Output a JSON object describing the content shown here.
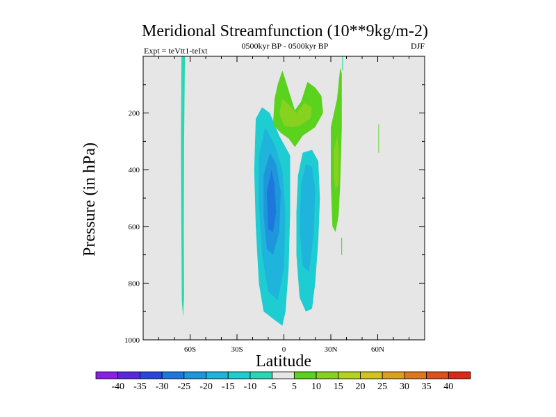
{
  "chart_data": {
    "type": "contour",
    "title": "Meridional Streamfunction (10**9kg/m-2)",
    "left_subtitle": "Expt = teVtt1-teIxt",
    "center_subtitle": "0500kyr BP - 0500kyr BP",
    "right_subtitle": "DJF",
    "xlabel": "Latitude",
    "ylabel": "Pressure (in hPa)",
    "xlim": [
      -90,
      90
    ],
    "ylim": [
      1000,
      0
    ],
    "x_ticks": [
      {
        "value": -60,
        "label": "60S"
      },
      {
        "value": -30,
        "label": "30S"
      },
      {
        "value": 0,
        "label": "0"
      },
      {
        "value": 30,
        "label": "30N"
      },
      {
        "value": 60,
        "label": "60N"
      }
    ],
    "y_ticks": [
      {
        "value": 200,
        "label": "200"
      },
      {
        "value": 400,
        "label": "400"
      },
      {
        "value": 600,
        "label": "600"
      },
      {
        "value": 800,
        "label": "800"
      },
      {
        "value": 1000,
        "label": "1000"
      }
    ],
    "background_color": "#e6e6e6",
    "colorbar": {
      "labels": [
        "-40",
        "-35",
        "-30",
        "-25",
        "-20",
        "-15",
        "-10",
        "-5",
        "5",
        "10",
        "15",
        "20",
        "25",
        "30",
        "35",
        "40"
      ],
      "colors": [
        "#8c1ee6",
        "#5a28dc",
        "#2846dc",
        "#1e78dc",
        "#1e96dc",
        "#1eb4dc",
        "#1ecdd2",
        "#28d7b4",
        "#e6e6e6",
        "#5ad21e",
        "#87d21e",
        "#b4d21e",
        "#d2c31e",
        "#dca01e",
        "#dc781e",
        "#dc501e",
        "#dc2814"
      ]
    },
    "contour_regions": [
      {
        "name": "band-60s",
        "value": -7,
        "color": "#28d7b4",
        "points": [
          [
            -65.5,
            0
          ],
          [
            -63.3,
            0
          ],
          [
            -63.8,
            300
          ],
          [
            -64,
            600
          ],
          [
            -63.8,
            850
          ],
          [
            -64.5,
            920
          ],
          [
            -65.3,
            860
          ],
          [
            -65.6,
            600
          ],
          [
            -65.8,
            300
          ]
        ]
      },
      {
        "name": "cell-south-outer",
        "value": -12,
        "color": "#1ecdd2",
        "points": [
          [
            -18,
            220
          ],
          [
            -14,
            180
          ],
          [
            -9,
            200
          ],
          [
            -3,
            280
          ],
          [
            4,
            350
          ],
          [
            4,
            550
          ],
          [
            3,
            750
          ],
          [
            1,
            900
          ],
          [
            -1,
            950
          ],
          [
            -6,
            930
          ],
          [
            -13,
            900
          ],
          [
            -16,
            800
          ],
          [
            -18,
            600
          ],
          [
            -19,
            400
          ]
        ]
      },
      {
        "name": "cell-south-mid",
        "value": -17,
        "color": "#1eb4dc",
        "points": [
          [
            -16,
            350
          ],
          [
            -12,
            250
          ],
          [
            -6,
            310
          ],
          [
            -1,
            400
          ],
          [
            1,
            560
          ],
          [
            0,
            750
          ],
          [
            -4,
            860
          ],
          [
            -10,
            830
          ],
          [
            -14,
            700
          ],
          [
            -16,
            520
          ]
        ]
      },
      {
        "name": "cell-south-inner",
        "value": -22,
        "color": "#1e96dc",
        "points": [
          [
            -13,
            420
          ],
          [
            -9,
            340
          ],
          [
            -5,
            380
          ],
          [
            -2,
            480
          ],
          [
            -3,
            620
          ],
          [
            -7,
            700
          ],
          [
            -11,
            680
          ],
          [
            -13,
            560
          ]
        ]
      },
      {
        "name": "cell-south-core",
        "value": -27,
        "color": "#1e78dc",
        "points": [
          [
            -11,
            480
          ],
          [
            -8,
            400
          ],
          [
            -6,
            450
          ],
          [
            -5,
            550
          ],
          [
            -7,
            620
          ],
          [
            -10,
            610
          ]
        ]
      },
      {
        "name": "cell-tropics-outer",
        "value": -12,
        "color": "#1ecdd2",
        "points": [
          [
            9,
            420
          ],
          [
            12,
            340
          ],
          [
            18,
            330
          ],
          [
            22,
            370
          ],
          [
            23,
            500
          ],
          [
            22,
            650
          ],
          [
            20,
            800
          ],
          [
            18,
            890
          ],
          [
            14,
            900
          ],
          [
            10,
            850
          ],
          [
            8,
            700
          ],
          [
            8,
            550
          ]
        ]
      },
      {
        "name": "cell-tropics-mid",
        "value": -17,
        "color": "#1eb4dc",
        "points": [
          [
            11,
            450
          ],
          [
            14,
            380
          ],
          [
            18,
            390
          ],
          [
            20,
            470
          ],
          [
            19,
            630
          ],
          [
            16,
            760
          ],
          [
            12,
            740
          ],
          [
            10,
            600
          ]
        ]
      },
      {
        "name": "upper-positive",
        "value": 7,
        "color": "#5ad21e",
        "points": [
          [
            -6,
            150
          ],
          [
            -4,
            100
          ],
          [
            -1,
            50
          ],
          [
            3,
            120
          ],
          [
            7,
            190
          ],
          [
            11,
            160
          ],
          [
            15,
            90
          ],
          [
            20,
            110
          ],
          [
            24,
            140
          ],
          [
            25,
            200
          ],
          [
            20,
            250
          ],
          [
            12,
            280
          ],
          [
            7,
            320
          ],
          [
            3,
            290
          ],
          [
            -2,
            270
          ],
          [
            -7,
            240
          ]
        ]
      },
      {
        "name": "upper-positive-inner",
        "value": 12,
        "color": "#87d21e",
        "points": [
          [
            -3,
            200
          ],
          [
            -1,
            150
          ],
          [
            3,
            170
          ],
          [
            8,
            200
          ],
          [
            13,
            165
          ],
          [
            18,
            180
          ],
          [
            17,
            220
          ],
          [
            10,
            245
          ],
          [
            5,
            250
          ],
          [
            0,
            245
          ]
        ]
      },
      {
        "name": "band-30n",
        "value": 7,
        "color": "#5ad21e",
        "points": [
          [
            30,
            250
          ],
          [
            34,
            150
          ],
          [
            36,
            40
          ],
          [
            37,
            60
          ],
          [
            37,
            250
          ],
          [
            36,
            450
          ],
          [
            35,
            560
          ],
          [
            33,
            620
          ],
          [
            31,
            600
          ],
          [
            30,
            450
          ]
        ]
      },
      {
        "name": "band-30n-inner",
        "value": 12,
        "color": "#87d21e",
        "points": [
          [
            32,
            330
          ],
          [
            34,
            280
          ],
          [
            35,
            330
          ],
          [
            35,
            450
          ],
          [
            33,
            470
          ],
          [
            32,
            420
          ]
        ]
      },
      {
        "name": "sliver-30n",
        "value": 7,
        "color": "#5ad21e",
        "points": [
          [
            36.7,
            640
          ],
          [
            37.2,
            640
          ],
          [
            37.2,
            700
          ],
          [
            36.7,
            700
          ]
        ]
      },
      {
        "name": "sliver-30n-top",
        "value": -7,
        "color": "#28d7b4",
        "points": [
          [
            37.3,
            0
          ],
          [
            37.8,
            0
          ],
          [
            37.8,
            50
          ],
          [
            37.3,
            50
          ]
        ]
      },
      {
        "name": "sliver-60n",
        "value": 7,
        "color": "#5ad21e",
        "points": [
          [
            60.4,
            240
          ],
          [
            60.8,
            240
          ],
          [
            60.8,
            340
          ],
          [
            60.4,
            340
          ]
        ]
      }
    ]
  }
}
